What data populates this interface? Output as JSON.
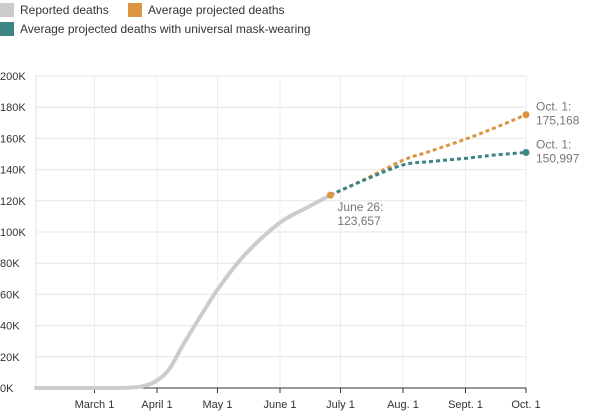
{
  "chart_data": {
    "type": "line",
    "legend": {
      "placement": "top-left",
      "items": [
        {
          "label": "Reported deaths",
          "color": "#cccccc"
        },
        {
          "label": "Average projected deaths",
          "color": "#dd9544"
        },
        {
          "label": "Average projected deaths with universal mask-wearing",
          "color": "#3d8585"
        }
      ]
    },
    "x_ticks": [
      "March 1",
      "April 1",
      "May 1",
      "June 1",
      "July 1",
      "Aug. 1",
      "Sept. 1",
      "Oct. 1"
    ],
    "x_tick_dates": [
      "2020-03-01",
      "2020-04-01",
      "2020-05-01",
      "2020-06-01",
      "2020-07-01",
      "2020-08-01",
      "2020-09-01",
      "2020-10-01"
    ],
    "y_ticks": [
      "0K",
      "20K",
      "40K",
      "60K",
      "80K",
      "100K",
      "120K",
      "140K",
      "160K",
      "180K",
      "200K"
    ],
    "ylim": [
      0,
      200000
    ],
    "xlim": [
      "2020-02-01",
      "2020-10-01"
    ],
    "grid": true,
    "series": [
      {
        "name": "Reported deaths",
        "color": "#cccccc",
        "style": "solid",
        "points": [
          [
            "2020-02-01",
            0
          ],
          [
            "2020-03-01",
            0
          ],
          [
            "2020-03-15",
            70
          ],
          [
            "2020-03-24",
            900
          ],
          [
            "2020-03-31",
            4000
          ],
          [
            "2020-04-07",
            12000
          ],
          [
            "2020-04-15",
            30000
          ],
          [
            "2020-05-01",
            63000
          ],
          [
            "2020-05-15",
            86000
          ],
          [
            "2020-06-01",
            106000
          ],
          [
            "2020-06-15",
            116000
          ],
          [
            "2020-06-26",
            123657
          ]
        ]
      },
      {
        "name": "Average projected deaths",
        "color": "#dd9544",
        "style": "dashed",
        "points": [
          [
            "2020-06-26",
            123657
          ],
          [
            "2020-07-15",
            135000
          ],
          [
            "2020-08-01",
            146000
          ],
          [
            "2020-08-15",
            152000
          ],
          [
            "2020-09-01",
            159500
          ],
          [
            "2020-09-15",
            166500
          ],
          [
            "2020-10-01",
            175168
          ]
        ]
      },
      {
        "name": "Average projected deaths with universal mask-wearing",
        "color": "#3d8585",
        "style": "dashed",
        "points": [
          [
            "2020-06-26",
            123657
          ],
          [
            "2020-07-15",
            134500
          ],
          [
            "2020-08-01",
            143000
          ],
          [
            "2020-08-15",
            145200
          ],
          [
            "2020-09-01",
            147200
          ],
          [
            "2020-09-15",
            149300
          ],
          [
            "2020-10-01",
            150997
          ]
        ]
      }
    ],
    "annotations": [
      {
        "date": "2020-06-26",
        "value": 123657,
        "color": "#dd9544",
        "line1": "June 26:",
        "line2": "123,657"
      },
      {
        "date": "2020-10-01",
        "value": 175168,
        "color": "#dd9544",
        "line1": "Oct. 1:",
        "line2": "175,168"
      },
      {
        "date": "2020-10-01",
        "value": 150997,
        "color": "#3d8585",
        "line1": "Oct. 1:",
        "line2": "150,997"
      }
    ]
  }
}
